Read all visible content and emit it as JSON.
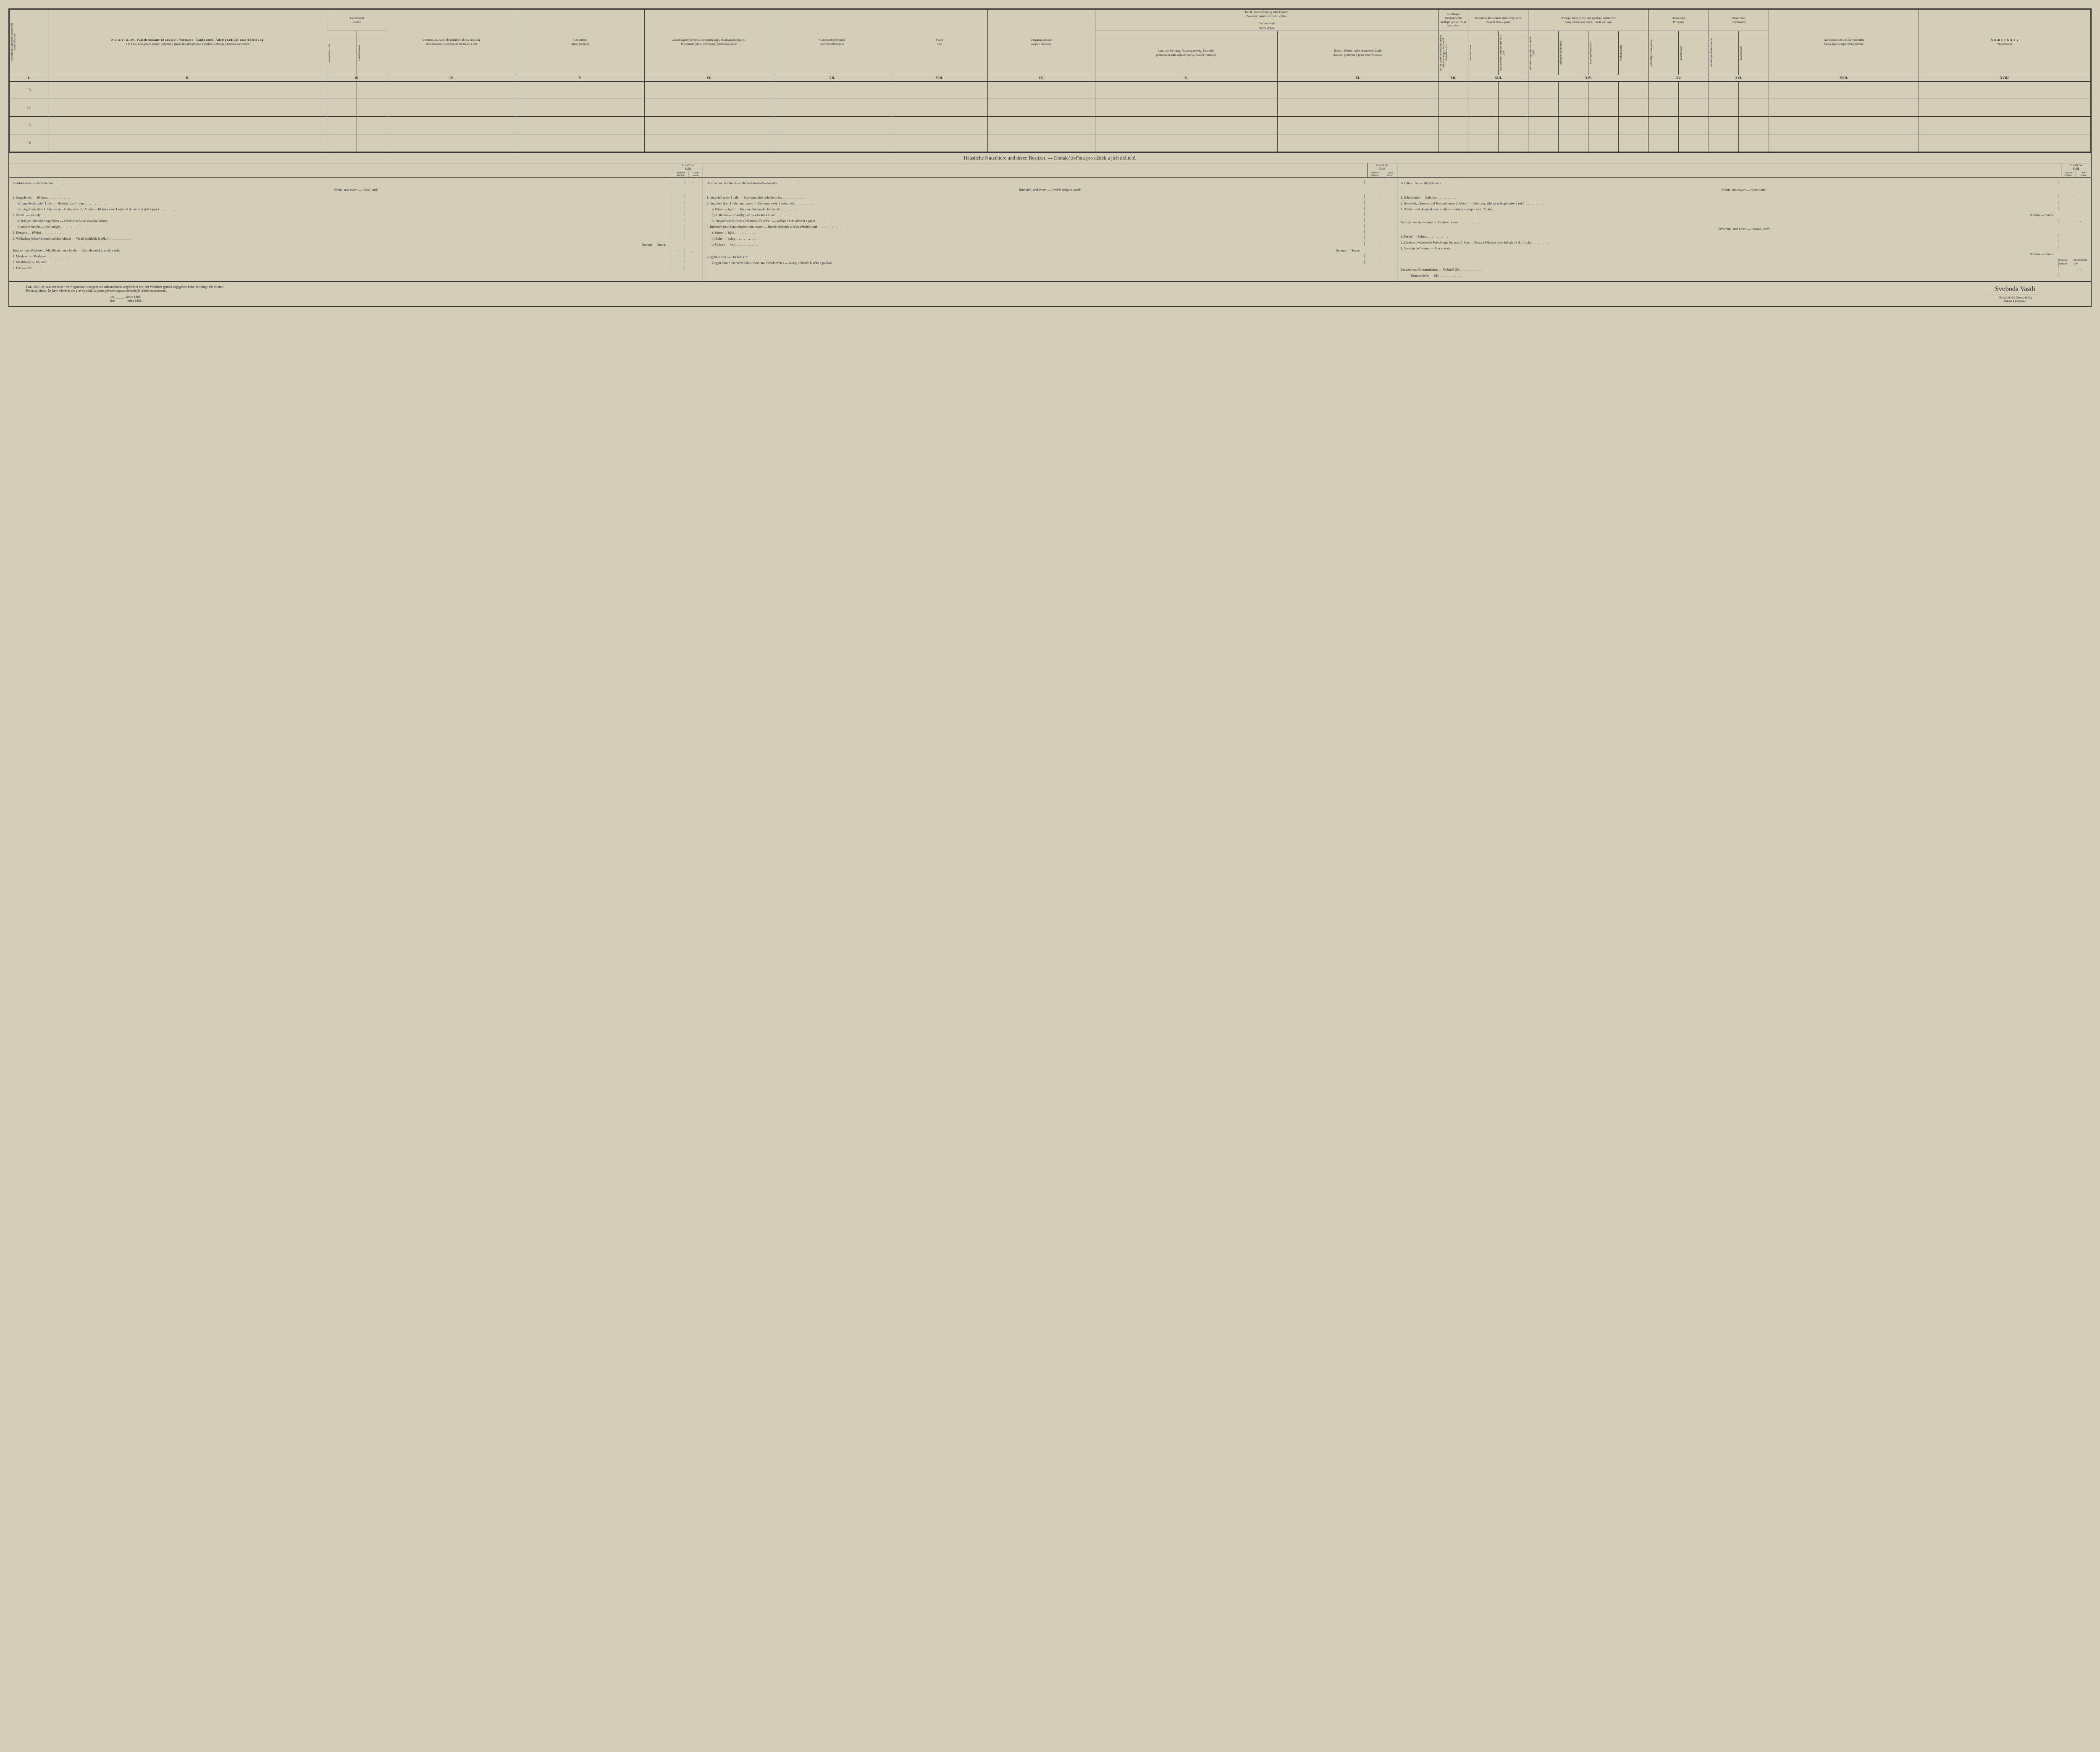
{
  "columns_roman": [
    "I.",
    "II.",
    "III.",
    "IV.",
    "V.",
    "VI.",
    "VII.",
    "VIII.",
    "IX.",
    "X.",
    "XI.",
    "XII.",
    "XIII.",
    "XIV.",
    "XV.",
    "XVI.",
    "XVII.",
    "XVIII."
  ],
  "headers": {
    "c1": {
      "de": "Fortlaufende Zahl der Personen",
      "cz": "Pořád jdoucí číslo osob"
    },
    "c2": {
      "de": "N a m e,\nu. zw. Familienname (Zuname), Vorname (Taufname), Adelsprädicat und Adelsrang",
      "cz": "J m é n o,\ntotiž jméno rodiny (příjmení), jméno (křestné jméno), predikát šlechtický a hodnost šlechtická"
    },
    "c3_grp": {
      "de": "Geschlecht",
      "cz": "Pohlaví"
    },
    "c3a": {
      "de": "männlich",
      "cz": "mužské"
    },
    "c3b": {
      "de": "weiblich",
      "cz": "ženské"
    },
    "c4": {
      "de": "Geburtsjahr,\nnach Möglichkeit Monat und Tag",
      "cz": "Rok narození,\ndle možnosti též měsíc a den"
    },
    "c5": {
      "de": "Geburtsort",
      "cz": "Místo narození"
    },
    "c6": {
      "de": "Zuständigkeit (Heimatsberechtigung), Staatsangehörigkeit",
      "cz": "Příslušnost (právo domovské) příslušnost státní"
    },
    "c7": {
      "de": "Glaubensbekenntniß",
      "cz": "Vyznání náboženské"
    },
    "c8": {
      "de": "Stand",
      "cz": "Stav"
    },
    "c9": {
      "de": "Umgangssprache",
      "cz": "Jazyk v obcování"
    },
    "c10_grp": {
      "de": "Beruf, Beschäftigung oder Erwerb",
      "cz": "Povolání, zaměstnání nebo výživa"
    },
    "c10a": {
      "de": "Haupterwerb",
      "cz": "hlavní výživa"
    },
    "c10": {
      "de": "ämtliche Stellung, Nahrungszweig, Gewerbe",
      "cz": "postavení úřední, způsob výživy, živnost (řemeslo)"
    },
    "c11": {
      "de": "Besitz, Arbeits- oder Dienstverhältniß",
      "cz": "majetek, postavení v práci nebo ve službě"
    },
    "c12_grp": {
      "de": "Allfälliger Nebenerwerb",
      "cz": "Vedlejší výživa, má-li kdo jakou"
    },
    "c13_grp": {
      "de": "Kenntniß des Lesens und Schreibens",
      "cz": "Znalost čtení a psaní"
    },
    "c14_grp": {
      "de": "Etwaige körperliche und geistige Gebrechen",
      "cz": "Vady na těle a na duchu, má-li kdo jaké"
    },
    "c15_grp": {
      "de": "Anwesend",
      "cz": "Přítomný"
    },
    "c16_grp": {
      "de": "Abwesend",
      "cz": "Nepřítomný"
    },
    "c17": {
      "de": "Aufenthaltsort des Abwesenden",
      "cz": "Místo, kde se nepřítomný zdržuje"
    },
    "c18": {
      "de": "A n m e r k u n g",
      "cz": "Připomenutí"
    },
    "sub12": {
      "de": "bei der Landwirthschaft, bei andren Industriezweigen, bei Handel (Gewerbe) u.s.w.",
      "cz": ""
    },
    "sub13a": {
      "de": "kann nur lesen",
      "cz": ""
    },
    "sub13b": {
      "de": "kann lesen und schreiben",
      "cz": "umí číst a psát"
    },
    "sub14a": {
      "de": "auf beiden Augen blind",
      "cz": "na obě oči slepý"
    },
    "sub14b": {
      "de": "taubstumm",
      "cz": "hluchoněmý"
    },
    "sub14c": {
      "de": "irrsinnig",
      "cz": "choromyslný"
    },
    "sub14d": {
      "de": "blödsinnig",
      "cz": "blbý"
    },
    "sub15a": {
      "de": "zeitweilig",
      "cz": "přítomný na čas"
    },
    "sub15b": {
      "de": "dauernd",
      "cz": "trvale"
    },
    "sub16a": {
      "de": "zeitweilig",
      "cz": "nepřítomný na čas"
    },
    "sub16b": {
      "de": "dauernd",
      "cz": "trvale"
    }
  },
  "row_numbers": [
    "13",
    "14",
    "15",
    "16"
  ],
  "section_title": "Häusliche Nutzthiere und deren Besitzer. — Domácí zvířata pro užitek a jich držitelé.",
  "count_head": {
    "label_de": "Anzahl der",
    "label_cz": "Kolik",
    "sub1_de": "Besitzer",
    "sub1_cz": "držitelů",
    "sub2_de": "Thiere",
    "sub2_cz": "zvířat"
  },
  "col1": {
    "title": "Pferdebesitzer — Držitelé koní",
    "sub": "Pferde, und zwar: — Koně, totiž:",
    "items": [
      "1. Jungpferde: — Hříbata:",
      "a) Jungpferde unter 1 Jahr — Hříbata níže 1 roku",
      "b) Jungpferde über 1 Jahr bis zum Gebrauche für Arbeit — Hříbata výše 1 roku až do užívání jich k práci",
      "2. Stuten: — Kobyly:",
      "a) belegte oder mit Saugfohlen — zhřebné nebo se ssavými hříbaty",
      "b) andere Stuten — jiné kobyly",
      "3. Hengste — Hřebci",
      "4. Wallachen (ohne Unterschied des Alters) — Valaši (nehledíc k věku)"
    ],
    "sum": "Summe — Suma.",
    "title2": "Besitzer von Maulesein, Maulthieren und Eseln — Držitelé mezků, mulů a oslů",
    "items2": [
      "1. Maulesel — Mezkové",
      "2. Maulthiere — Mulové",
      "3. Esel — Osli"
    ]
  },
  "col2": {
    "title": "Besitzer von Rindvieh — Držitelé hovězího dobytka",
    "sub": "Rindvieh, und zwar: — Hovězí dobytek, totiž:",
    "items": [
      "1. Jungvieh unter 1 Jahr — Jalovizna níže jednoho roku",
      "2. Jungvieh über 1 Jahr, und zwar: — Jalovizna výše 1 roku, totiž:",
      "a) Stiere — býci . . .| bis zum Gebrauche für Zucht",
      "b) Kalbinen — prvničky | až do užívání k chovu",
      "c) Jungochsen bis zum Gebrauche für Arbeit — volčata až do užívání k práci",
      "3. Rindvieh im Gebrauchsalter, und zwar: — Hovězí dobytek u věku užívání, totiž:",
      "a) Stiere — býci",
      "b) Kühe — krávy",
      "c) Ochsen — voli"
    ],
    "sum": "Summe — Suma.",
    "title2": "Ziegenbesitzer — Držitelé koz.",
    "items2": [
      "Ziegen ohne Unterschied des Alters und Geschlechtes — Kozy, nehledíc k věku a pohlaví"
    ]
  },
  "col3": {
    "title": "Schafbesitzer — Držitelé ovcí",
    "sub": "Schafe, und zwar: — Ovce, totiž:",
    "items": [
      "1. Schafmütter — Bahnice",
      "2. Jungvieh, Lämmer und Hammel unter 2 Jahren — Jalovizna, jehňata a skopci níže 2 roků",
      "3. Widder und Hammel über 2 Jahre — Berani a skopci výše 2 roků"
    ],
    "sum": "Summe — Suma.",
    "title2": "Besitzer von Schweinen — Držitelé prasat",
    "sub2": "Schweine, und zwar: — Prasata, totiž:",
    "items2": [
      "1. Ferkel — Selata",
      "2. Läuferschweine oder Frischlinge bis zum 1. Jahr — Prasata běhouni nebo frišlata až do 1. roku",
      "3. Sonstige Schweine — Jiná prasata"
    ],
    "sum2": "Summe — Suma.",
    "beehive_hdr": {
      "a": "Besitzer\nDržitelé",
      "b": "Bienenstöcke\nÚly"
    },
    "title3": "Besitzer von Bienenstöcken — Držitelé úlů",
    "items3": "Bienenstöcke — Úly"
  },
  "footer": {
    "decl_de": "Daß ich Alles, was ich in den vorliegenden Anzeigezettel aufzunehmen verpflichtet bin, der Wahrheit gemäß angegeben habe, bestätige ich hiermit.",
    "decl_cz": "Potvrzuji tímto, že jsem všechno dle pravdy udal, co jsem povinen zapsati do hořejší cedule oznamovací.",
    "date_de": "am ______ Jäner 1881.",
    "date_cz": "dne ______ ledna 1881.",
    "sig": "Svoboda Vasili",
    "sig_note_de": "(Raum für die Unterschrift.)",
    "sig_note_cz": "(Místo k podpisu.)"
  }
}
